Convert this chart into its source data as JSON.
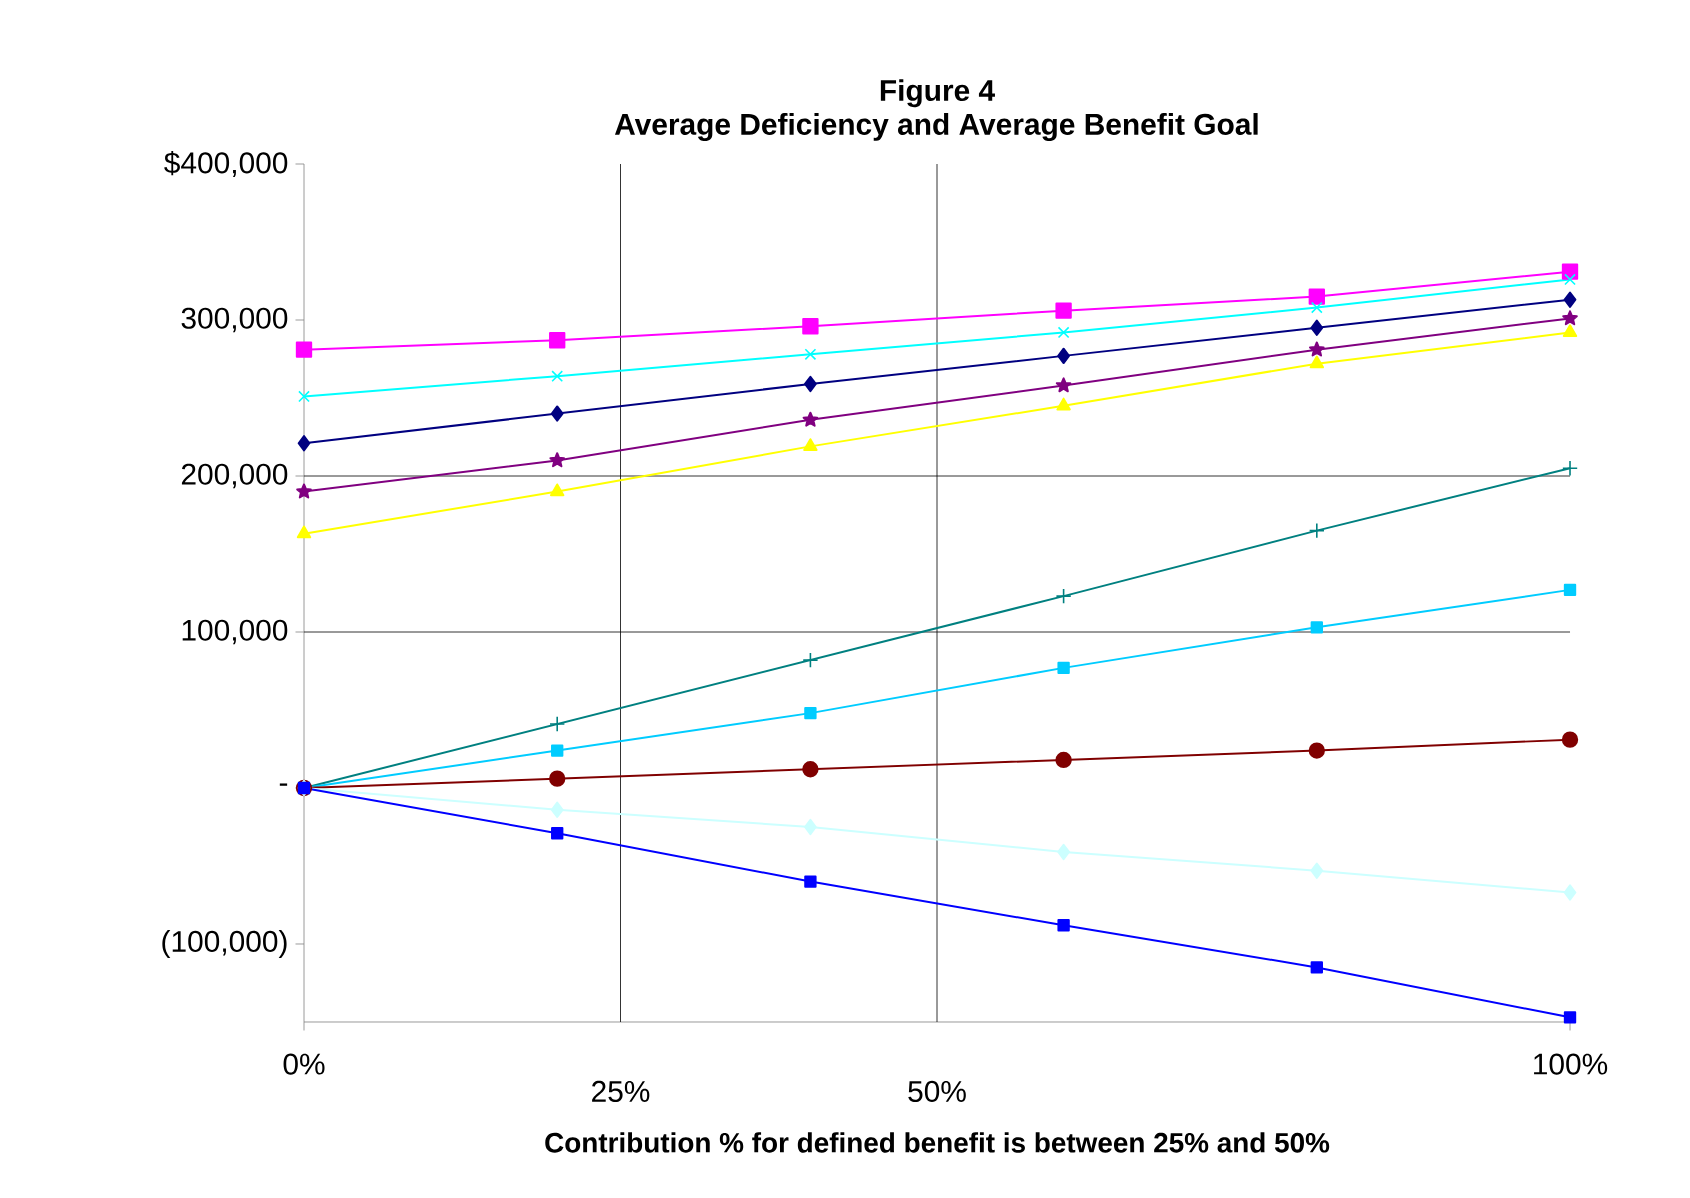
{
  "chart_data": {
    "type": "line",
    "title": "Figure 4",
    "subtitle": "Average Deficiency and Average Benefit Goal",
    "xlabel": "Contribution % for defined benefit is between 25% and 50%",
    "x": [
      0,
      20,
      40,
      60,
      80,
      100
    ],
    "xlim": [
      0,
      100
    ],
    "xticks": [
      {
        "value": 0,
        "label": "0%"
      },
      {
        "value": 100,
        "label": "100%"
      }
    ],
    "ylim": [
      -150000,
      400000
    ],
    "yticks": [
      {
        "value": -100000,
        "label": "(100,000)"
      },
      {
        "value": 0,
        "label": "-"
      },
      {
        "value": 100000,
        "label": "100,000"
      },
      {
        "value": 200000,
        "label": "200,000"
      },
      {
        "value": 300000,
        "label": "300,000"
      },
      {
        "value": 400000,
        "label": "$400,000"
      }
    ],
    "ref_lines": [
      {
        "axis": "x",
        "value": 25,
        "label": "25%"
      },
      {
        "axis": "x",
        "value": 50,
        "label": "50%"
      },
      {
        "axis": "y",
        "value": 100000
      },
      {
        "axis": "y",
        "value": 200000
      }
    ],
    "series": [
      {
        "color": "#ff00ff",
        "marker": "square",
        "values": [
          281000,
          287000,
          296000,
          306000,
          315000,
          331000
        ]
      },
      {
        "color": "#00ffff",
        "marker": "cross",
        "values": [
          251000,
          264000,
          278000,
          292000,
          308000,
          326000
        ]
      },
      {
        "color": "#000080",
        "marker": "diamond",
        "values": [
          221000,
          240000,
          259000,
          277000,
          295000,
          313000
        ]
      },
      {
        "color": "#800080",
        "marker": "star",
        "values": [
          190000,
          210000,
          236000,
          258000,
          281000,
          301000
        ]
      },
      {
        "color": "#ffff00",
        "marker": "triangle",
        "values": [
          163000,
          190000,
          219000,
          245000,
          272000,
          292000
        ]
      },
      {
        "color": "#008080",
        "marker": "plus",
        "values": [
          0,
          41000,
          82000,
          123000,
          165000,
          205000
        ]
      },
      {
        "color": "#00ccff",
        "marker": "square",
        "values": [
          0,
          24000,
          48000,
          77000,
          103000,
          127000
        ]
      },
      {
        "color": "#800000",
        "marker": "circle",
        "values": [
          0,
          6000,
          12000,
          18000,
          24000,
          31000
        ]
      },
      {
        "color": "#ccffff",
        "marker": "diamond",
        "values": [
          0,
          -14000,
          -25000,
          -41000,
          -53000,
          -67000
        ]
      },
      {
        "color": "#0000ff",
        "marker": "square",
        "values": [
          0,
          -29000,
          -60000,
          -88000,
          -115000,
          -147000
        ]
      }
    ]
  }
}
